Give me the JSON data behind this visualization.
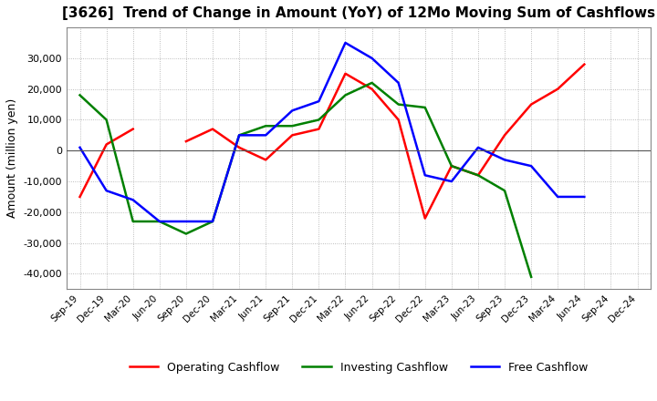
{
  "title": "[3626]  Trend of Change in Amount (YoY) of 12Mo Moving Sum of Cashflows",
  "ylabel": "Amount (million yen)",
  "ylim": [
    -45000,
    40000
  ],
  "yticks": [
    -40000,
    -30000,
    -20000,
    -10000,
    0,
    10000,
    20000,
    30000
  ],
  "x_labels": [
    "Sep-19",
    "Dec-19",
    "Mar-20",
    "Jun-20",
    "Sep-20",
    "Dec-20",
    "Mar-21",
    "Jun-21",
    "Sep-21",
    "Dec-21",
    "Mar-22",
    "Jun-22",
    "Sep-22",
    "Dec-22",
    "Mar-23",
    "Jun-23",
    "Sep-23",
    "Dec-23",
    "Mar-24",
    "Jun-24",
    "Sep-24",
    "Dec-24"
  ],
  "operating": [
    -15000,
    2000,
    7000,
    null,
    3000,
    7000,
    1000,
    -3000,
    5000,
    7000,
    25000,
    20000,
    10000,
    -22000,
    -5000,
    -8000,
    5000,
    15000,
    20000,
    28000,
    null,
    null
  ],
  "investing": [
    18000,
    10000,
    -23000,
    -23000,
    -27000,
    -23000,
    5000,
    8000,
    8000,
    10000,
    18000,
    22000,
    15000,
    14000,
    -5000,
    -8000,
    -13000,
    -41000,
    null,
    null,
    null,
    null
  ],
  "free": [
    1000,
    -13000,
    -16000,
    -23000,
    -23000,
    -23000,
    5000,
    5000,
    13000,
    16000,
    35000,
    30000,
    22000,
    -8000,
    -10000,
    1000,
    -3000,
    -5000,
    -15000,
    -15000,
    null,
    null
  ],
  "operating_color": "#FF0000",
  "investing_color": "#008000",
  "free_color": "#0000FF",
  "background_color": "#FFFFFF",
  "grid_color": "#AAAAAA",
  "grid_style": ":"
}
